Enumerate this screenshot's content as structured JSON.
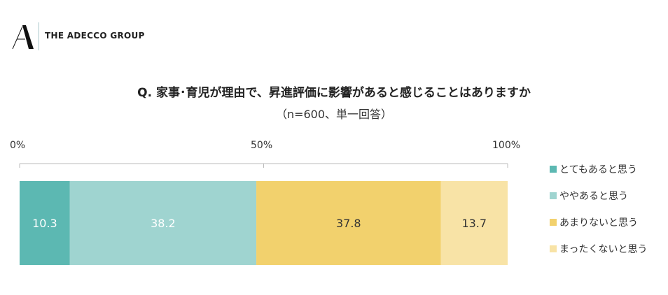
{
  "logo": {
    "text": "THE ADECCO GROUP"
  },
  "chart_data": {
    "type": "bar",
    "orientation": "horizontal-stacked-100",
    "title": "Q.  家事･育児が理由で、昇進評価に影響があると感じることはありますか",
    "subtitle": "（n=600、単一回答）",
    "xlim": [
      0,
      100
    ],
    "ticks": [
      "0%",
      "50%",
      "100%"
    ],
    "series": [
      {
        "name": "とてもあると思う",
        "value": 10.3,
        "color": "#5cb8b2",
        "label_color": "#ffffff"
      },
      {
        "name": "ややあると思う",
        "value": 38.2,
        "color": "#9fd4d0",
        "label_color": "#ffffff"
      },
      {
        "name": "あまりないと思う",
        "value": 37.8,
        "color": "#f2d16d",
        "label_color": "#333333"
      },
      {
        "name": "まったくないと思う",
        "value": 13.7,
        "color": "#f8e3a6",
        "label_color": "#333333"
      }
    ],
    "legend": "right"
  }
}
